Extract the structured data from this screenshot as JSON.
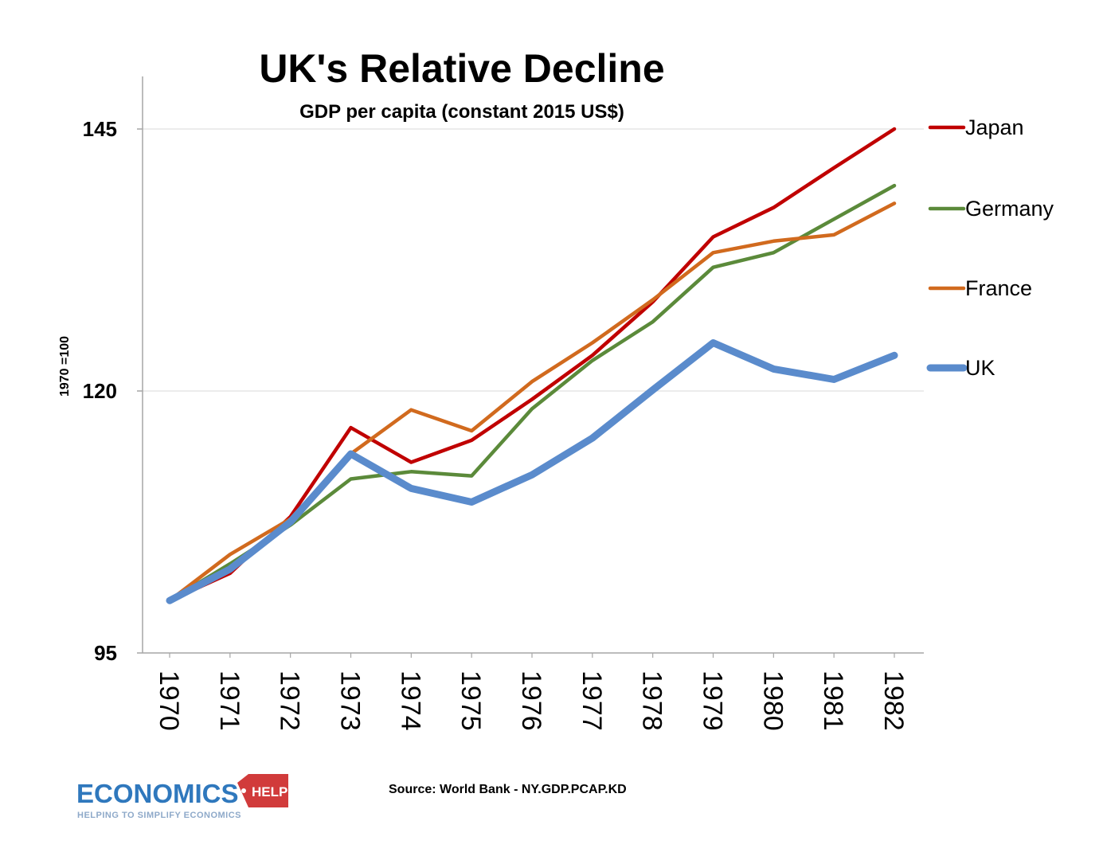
{
  "chart_data": {
    "type": "line",
    "title": "UK's Relative Decline",
    "subtitle": "GDP per capita (constant 2015 US$)",
    "ylabel": "1970 =100",
    "xlabel": "",
    "categories": [
      "1970",
      "1971",
      "1972",
      "1973",
      "1974",
      "1975",
      "1976",
      "1977",
      "1978",
      "1979",
      "1980",
      "1981",
      "1982"
    ],
    "ylim": [
      95,
      150
    ],
    "yticks": [
      95,
      120,
      145
    ],
    "grid": "horizontal",
    "legend_position": "right",
    "series": [
      {
        "name": "Japan",
        "color": "#c00000",
        "line_weight": "medium",
        "values": [
          100,
          102.6,
          108,
          116.5,
          113.2,
          115.3,
          119.2,
          123.4,
          128.5,
          134.7,
          137.5,
          141.3,
          145.0
        ]
      },
      {
        "name": "Germany",
        "color": "#5b8a3a",
        "line_weight": "medium",
        "values": [
          100,
          103.5,
          107.2,
          111.6,
          112.3,
          111.9,
          118.3,
          122.9,
          126.6,
          131.8,
          133.2,
          136.4,
          139.6
        ]
      },
      {
        "name": "France",
        "color": "#d16a1e",
        "line_weight": "medium",
        "values": [
          100,
          104.4,
          107.8,
          114.0,
          118.2,
          116.2,
          120.9,
          124.6,
          128.7,
          133.2,
          134.3,
          134.9,
          137.9
        ]
      },
      {
        "name": "UK",
        "color": "#5a8bcc",
        "line_weight": "thick",
        "values": [
          100,
          103.0,
          107.5,
          114.0,
          110.7,
          109.4,
          112.0,
          115.5,
          120.1,
          124.6,
          122.1,
          121.1,
          123.4
        ]
      }
    ]
  },
  "footer": {
    "source": "Source: World Bank - NY.GDP.PCAP.KD"
  },
  "logo": {
    "name": "ECONOMICS",
    "badge": "HELP",
    "tagline": "HELPING TO SIMPLIFY ECONOMICS",
    "color_primary": "#2f78bd",
    "color_badge": "#d13b3b"
  }
}
